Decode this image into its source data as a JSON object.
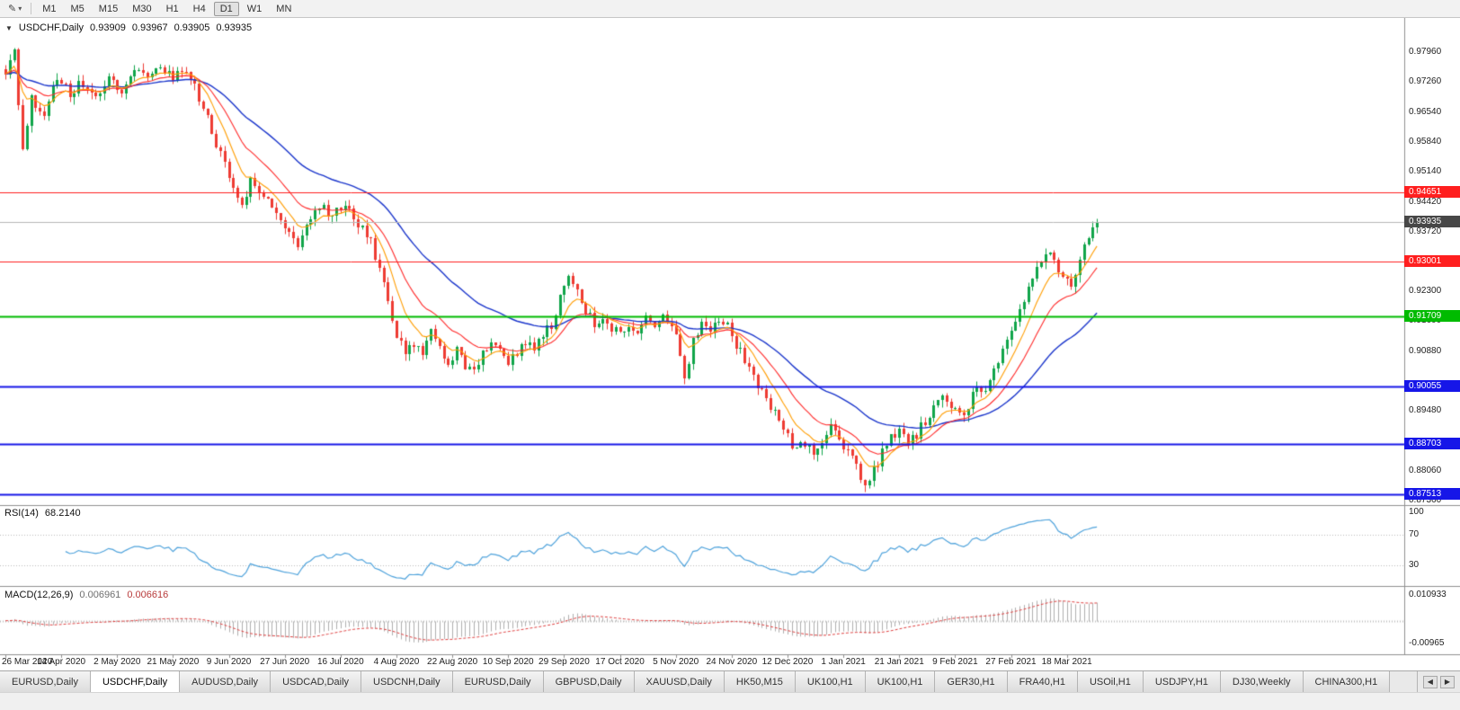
{
  "toolbar": {
    "tool_icon": "✎",
    "tool_caret": "▾",
    "timeframes": [
      {
        "label": "M1",
        "active": false
      },
      {
        "label": "M5",
        "active": false
      },
      {
        "label": "M15",
        "active": false
      },
      {
        "label": "M30",
        "active": false
      },
      {
        "label": "H1",
        "active": false
      },
      {
        "label": "H4",
        "active": false
      },
      {
        "label": "D1",
        "active": true
      },
      {
        "label": "W1",
        "active": false
      },
      {
        "label": "MN",
        "active": false
      }
    ]
  },
  "chart": {
    "collapse_caret": "▼",
    "symbol": "USDCHF,Daily",
    "ohlc": {
      "open": "0.93909",
      "high": "0.93967",
      "low": "0.93905",
      "close": "0.93935"
    },
    "bid_price": "0.93935",
    "bid_tag_color": "#474747",
    "price_axis_labels": [
      "0.97960",
      "0.97260",
      "0.96540",
      "0.95840",
      "0.95140",
      "0.94420",
      "0.93720",
      "0.92300",
      "0.91600",
      "0.90880",
      "0.89480",
      "0.88060",
      "0.87360"
    ],
    "levels": [
      {
        "price": "0.94651",
        "color": "#ff1f1f",
        "width": 1
      },
      {
        "price": "0.93001",
        "color": "#ff1f1f",
        "width": 1
      },
      {
        "price": "0.91709",
        "color": "#00bb00",
        "width": 2
      },
      {
        "price": "0.90055",
        "color": "#1616e8",
        "width": 2
      },
      {
        "price": "0.88703",
        "color": "#1616e8",
        "width": 2
      },
      {
        "price": "0.87513",
        "color": "#1616e8",
        "width": 2
      }
    ],
    "date_labels": [
      {
        "i": 0,
        "label": "26 Mar 2020"
      },
      {
        "i": 13,
        "label": "14 Apr 2020"
      },
      {
        "i": 26,
        "label": "2 May 2020"
      },
      {
        "i": 39,
        "label": "21 May 2020"
      },
      {
        "i": 52,
        "label": "9 Jun 2020"
      },
      {
        "i": 65,
        "label": "27 Jun 2020"
      },
      {
        "i": 78,
        "label": "16 Jul 2020"
      },
      {
        "i": 91,
        "label": "4 Aug 2020"
      },
      {
        "i": 104,
        "label": "22 Aug 2020"
      },
      {
        "i": 117,
        "label": "10 Sep 2020"
      },
      {
        "i": 130,
        "label": "29 Sep 2020"
      },
      {
        "i": 143,
        "label": "17 Oct 2020"
      },
      {
        "i": 156,
        "label": "5 Nov 2020"
      },
      {
        "i": 169,
        "label": "24 Nov 2020"
      },
      {
        "i": 182,
        "label": "12 Dec 2020"
      },
      {
        "i": 195,
        "label": "1 Jan 2021"
      },
      {
        "i": 208,
        "label": "21 Jan 2021"
      },
      {
        "i": 221,
        "label": "9 Feb 2021"
      },
      {
        "i": 234,
        "label": "27 Feb 2021"
      },
      {
        "i": 247,
        "label": "18 Mar 2021"
      }
    ]
  },
  "indicators": {
    "rsi": {
      "name": "RSI(14)",
      "value": "68.2140",
      "axis_labels": [
        {
          "value": 100,
          "label": "100"
        },
        {
          "value": 70,
          "label": "70"
        },
        {
          "value": 30,
          "label": "30"
        }
      ],
      "guide_levels": [
        70,
        30
      ]
    },
    "macd": {
      "name": "MACD(12,26,9)",
      "value_main": "0.006961",
      "value_signal": "0.006616",
      "axis_top": "0.010933",
      "axis_bottom": "-0.00965"
    }
  },
  "chart_data": {
    "type": "candlestick",
    "symbol": "USDCHF",
    "timeframe": "Daily",
    "bars": 255,
    "price_range": [
      0.8726,
      0.9876
    ],
    "last_close": 0.93935,
    "colors": {
      "up": "#10a54a",
      "down": "#ee3b33",
      "bid_line": "#b8b8b8",
      "rsi": "#4fa3dc",
      "macd_hist": "#b0b0b0",
      "macd_signal": "#e04040"
    },
    "moving_averages": [
      {
        "period": 40,
        "color": "#1b36cc",
        "width": 1.4
      },
      {
        "period": 17,
        "color": "#ff2a2a",
        "width": 1.1
      },
      {
        "period": 8,
        "color": "#ff9d00",
        "width": 1.1
      }
    ],
    "close_anchors": [
      [
        0,
        0.9755
      ],
      [
        2,
        0.98
      ],
      [
        4,
        0.956
      ],
      [
        6,
        0.969
      ],
      [
        9,
        0.9645
      ],
      [
        12,
        0.974
      ],
      [
        15,
        0.97
      ],
      [
        18,
        0.9725
      ],
      [
        21,
        0.9685
      ],
      [
        24,
        0.9745
      ],
      [
        27,
        0.9705
      ],
      [
        30,
        0.976
      ],
      [
        33,
        0.9725
      ],
      [
        36,
        0.9755
      ],
      [
        39,
        0.9735
      ],
      [
        42,
        0.975
      ],
      [
        44,
        0.9715
      ],
      [
        46,
        0.9665
      ],
      [
        48,
        0.9605
      ],
      [
        51,
        0.9535
      ],
      [
        53,
        0.9485
      ],
      [
        55,
        0.9425
      ],
      [
        57,
        0.95
      ],
      [
        59,
        0.947
      ],
      [
        62,
        0.9425
      ],
      [
        65,
        0.9385
      ],
      [
        68,
        0.9345
      ],
      [
        70,
        0.9395
      ],
      [
        73,
        0.9435
      ],
      [
        76,
        0.9405
      ],
      [
        79,
        0.944
      ],
      [
        82,
        0.9395
      ],
      [
        85,
        0.9345
      ],
      [
        87,
        0.9285
      ],
      [
        89,
        0.9205
      ],
      [
        91,
        0.9125
      ],
      [
        93,
        0.9085
      ],
      [
        95,
        0.9105
      ],
      [
        97,
        0.9075
      ],
      [
        99,
        0.9135
      ],
      [
        101,
        0.9105
      ],
      [
        103,
        0.9065
      ],
      [
        105,
        0.909
      ],
      [
        107,
        0.9055
      ],
      [
        109,
        0.9035
      ],
      [
        111,
        0.9085
      ],
      [
        113,
        0.9115
      ],
      [
        115,
        0.9095
      ],
      [
        117,
        0.9065
      ],
      [
        119,
        0.9085
      ],
      [
        121,
        0.9115
      ],
      [
        123,
        0.9095
      ],
      [
        125,
        0.9125
      ],
      [
        127,
        0.9155
      ],
      [
        129,
        0.9215
      ],
      [
        131,
        0.9268
      ],
      [
        133,
        0.9225
      ],
      [
        135,
        0.9185
      ],
      [
        137,
        0.9155
      ],
      [
        139,
        0.9175
      ],
      [
        141,
        0.9145
      ],
      [
        143,
        0.9125
      ],
      [
        145,
        0.9155
      ],
      [
        147,
        0.9135
      ],
      [
        149,
        0.9165
      ],
      [
        151,
        0.9145
      ],
      [
        153,
        0.9175
      ],
      [
        155,
        0.9155
      ],
      [
        157,
        0.9085
      ],
      [
        158,
        0.9015
      ],
      [
        160,
        0.9115
      ],
      [
        162,
        0.9155
      ],
      [
        164,
        0.9135
      ],
      [
        166,
        0.9165
      ],
      [
        168,
        0.9145
      ],
      [
        170,
        0.9105
      ],
      [
        172,
        0.9065
      ],
      [
        174,
        0.9025
      ],
      [
        176,
        0.8995
      ],
      [
        178,
        0.8955
      ],
      [
        180,
        0.8925
      ],
      [
        182,
        0.8885
      ],
      [
        184,
        0.8855
      ],
      [
        186,
        0.8875
      ],
      [
        188,
        0.8845
      ],
      [
        190,
        0.8875
      ],
      [
        192,
        0.8905
      ],
      [
        194,
        0.8875
      ],
      [
        196,
        0.8855
      ],
      [
        198,
        0.8825
      ],
      [
        200,
        0.8765
      ],
      [
        202,
        0.8805
      ],
      [
        204,
        0.8855
      ],
      [
        206,
        0.8885
      ],
      [
        208,
        0.8905
      ],
      [
        210,
        0.8875
      ],
      [
        212,
        0.8895
      ],
      [
        214,
        0.8925
      ],
      [
        216,
        0.8955
      ],
      [
        218,
        0.8995
      ],
      [
        220,
        0.8965
      ],
      [
        222,
        0.8935
      ],
      [
        224,
        0.8965
      ],
      [
        226,
        0.8995
      ],
      [
        228,
        0.9005
      ],
      [
        230,
        0.9045
      ],
      [
        232,
        0.9095
      ],
      [
        234,
        0.9135
      ],
      [
        236,
        0.9185
      ],
      [
        238,
        0.9245
      ],
      [
        240,
        0.9295
      ],
      [
        242,
        0.9325
      ],
      [
        244,
        0.9305
      ],
      [
        246,
        0.9272
      ],
      [
        248,
        0.9252
      ],
      [
        250,
        0.9305
      ],
      [
        252,
        0.9355
      ],
      [
        254,
        0.9392
      ]
    ]
  },
  "tabs": {
    "scroll_left": "◀",
    "scroll_right": "▶",
    "items": [
      {
        "label": "EURUSD,Daily",
        "active": false
      },
      {
        "label": "USDCHF,Daily",
        "active": true
      },
      {
        "label": "AUDUSD,Daily",
        "active": false
      },
      {
        "label": "USDCAD,Daily",
        "active": false
      },
      {
        "label": "USDCNH,Daily",
        "active": false
      },
      {
        "label": "EURUSD,Daily",
        "active": false
      },
      {
        "label": "GBPUSD,Daily",
        "active": false
      },
      {
        "label": "XAUUSD,Daily",
        "active": false
      },
      {
        "label": "HK50,M15",
        "active": false
      },
      {
        "label": "UK100,H1",
        "active": false
      },
      {
        "label": "UK100,H1",
        "active": false
      },
      {
        "label": "GER30,H1",
        "active": false
      },
      {
        "label": "FRA40,H1",
        "active": false
      },
      {
        "label": "USOil,H1",
        "active": false
      },
      {
        "label": "USDJPY,H1",
        "active": false
      },
      {
        "label": "DJ30,Weekly",
        "active": false
      },
      {
        "label": "CHINA300,H1",
        "active": false
      }
    ]
  }
}
